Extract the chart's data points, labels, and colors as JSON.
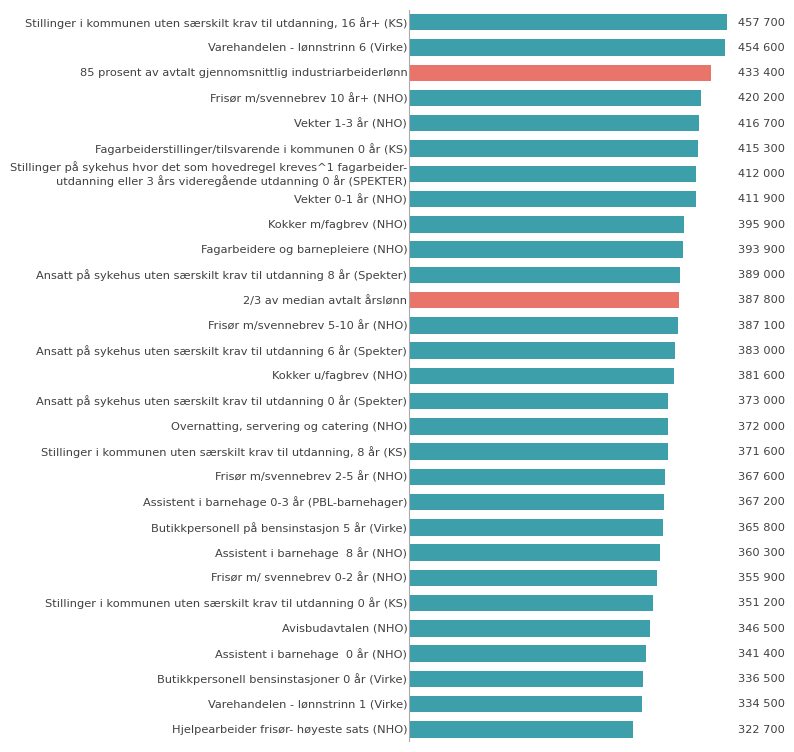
{
  "categories": [
    "Stillinger i kommunen uten særskilt krav til utdanning, 16 år+ (KS)",
    "Varehandelen - lønnstrinn 6 (Virke)",
    "85 prosent av avtalt gjennomsnittlig industriarbeiderlønn",
    "Frisør m/svennebrev 10 år+ (NHO)",
    "Vekter 1-3 år (NHO)",
    "Fagarbeiderstillinger/tilsvarende i kommunen 0 år (KS)",
    "Stillinger på sykehus hvor det som hovedregel kreves^1 fagarbeider-\nutdanning eller 3 års videregående utdanning 0 år (SPEKTER)",
    "Vekter 0-1 år (NHO)",
    "Kokker m/fagbrev (NHO)",
    "Fagarbeidere og barnepleiere (NHO)",
    "Ansatt på sykehus uten særskilt krav til utdanning 8 år (Spekter)",
    "2/3 av median avtalt årslønn",
    "Frisør m/svennebrev 5-10 år (NHO)",
    "Ansatt på sykehus uten særskilt krav til utdanning 6 år (Spekter)",
    "Kokker u/fagbrev (NHO)",
    "Ansatt på sykehus uten særskilt krav til utdanning 0 år (Spekter)",
    "Overnatting, servering og catering (NHO)",
    "Stillinger i kommunen uten særskilt krav til utdanning, 8 år (KS)",
    "Frisør m/svennebrev 2-5 år (NHO)",
    "Assistent i barnehage 0-3 år (PBL-barnehager)",
    "Butikkpersonell på bensinstasjon 5 år (Virke)",
    "Assistent i barnehage  8 år (NHO)",
    "Frisør m/ svennebrev 0-2 år (NHO)",
    "Stillinger i kommunen uten særskilt krav til utdanning 0 år (KS)",
    "Avisbudavtalen (NHO)",
    "Assistent i barnehage  0 år (NHO)",
    "Butikkpersonell bensinstasjoner 0 år (Virke)",
    "Varehandelen - lønnstrinn 1 (Virke)",
    "Hjelpearbeider frisør- høyeste sats (NHO)"
  ],
  "values": [
    457700,
    454600,
    433400,
    420200,
    416700,
    415300,
    412000,
    411900,
    395900,
    393900,
    389000,
    387800,
    387100,
    383000,
    381600,
    373000,
    372000,
    371600,
    367600,
    367200,
    365800,
    360300,
    355900,
    351200,
    346500,
    341400,
    336500,
    334500,
    322700
  ],
  "bar_colors": [
    "#3c9faa",
    "#3c9faa",
    "#e8746a",
    "#3c9faa",
    "#3c9faa",
    "#3c9faa",
    "#3c9faa",
    "#3c9faa",
    "#3c9faa",
    "#3c9faa",
    "#3c9faa",
    "#e8746a",
    "#3c9faa",
    "#3c9faa",
    "#3c9faa",
    "#3c9faa",
    "#3c9faa",
    "#3c9faa",
    "#3c9faa",
    "#3c9faa",
    "#3c9faa",
    "#3c9faa",
    "#3c9faa",
    "#3c9faa",
    "#3c9faa",
    "#3c9faa",
    "#3c9faa",
    "#3c9faa",
    "#3c9faa"
  ],
  "bar_height": 0.65,
  "label_fontsize": 8.2,
  "value_fontsize": 8.2,
  "background_color": "#ffffff",
  "text_color": "#404040",
  "axis_line_color": "#aaaaaa",
  "xmax": 470000
}
